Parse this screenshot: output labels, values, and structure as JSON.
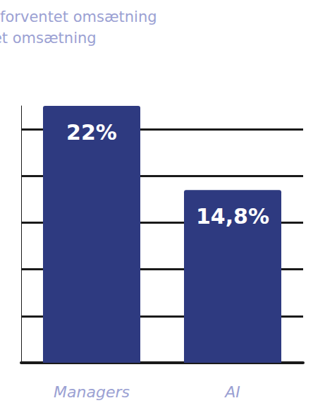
{
  "chart_data": {
    "type": "bar",
    "title": "Differencen mellem forventet omsætning og realiseret omsætning",
    "categories": [
      "Managers",
      "AI"
    ],
    "values": [
      22,
      14.8
    ],
    "value_labels": [
      "22%",
      "14,8%"
    ],
    "color": "#2e3a80",
    "ylim": [
      0,
      22
    ],
    "yticks": [
      0,
      4,
      8,
      12,
      16,
      20
    ],
    "grid": true,
    "data_labels": true,
    "tick_labels": "x"
  }
}
